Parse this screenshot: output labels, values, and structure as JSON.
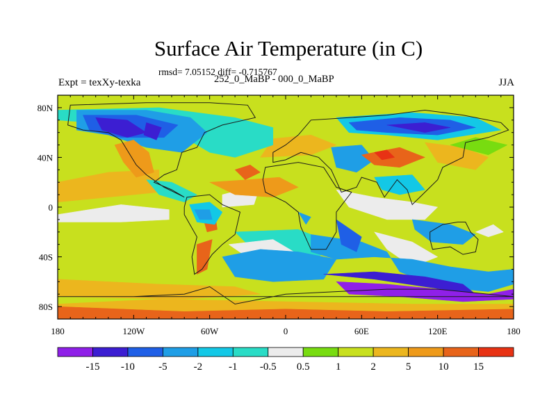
{
  "title": "Surface Air Temperature (in C)",
  "stats_text": "rmsd= 7.05152 diff= -0.715767",
  "left_subtitle": "Expt = texXy-texka",
  "center_subtitle": "252_0_MaBP - 000_0_MaBP",
  "right_subtitle": "JJA",
  "map": {
    "projection": "cylindrical-equidistant",
    "lon_range": [
      -180,
      180
    ],
    "lat_range": [
      -90,
      90
    ],
    "lon_ticks": [
      {
        "value": -180,
        "label": "180"
      },
      {
        "value": -120,
        "label": "120W"
      },
      {
        "value": -60,
        "label": "60W"
      },
      {
        "value": 0,
        "label": "0"
      },
      {
        "value": 60,
        "label": "60E"
      },
      {
        "value": 120,
        "label": "120E"
      },
      {
        "value": 180,
        "label": "180"
      }
    ],
    "lat_ticks": [
      {
        "value": 80,
        "label": "80N"
      },
      {
        "value": 40,
        "label": "40N"
      },
      {
        "value": 0,
        "label": "0"
      },
      {
        "value": -40,
        "label": "40S"
      },
      {
        "value": -80,
        "label": "80S"
      }
    ]
  },
  "colorbar": {
    "boundary_labels": [
      "-15",
      "-10",
      "-5",
      "-2",
      "-1",
      "-0.5",
      "0.5",
      "1",
      "2",
      "5",
      "10",
      "15"
    ],
    "colors": [
      "#8f20e8",
      "#3c1ed2",
      "#1f5fe6",
      "#1f9ee6",
      "#13c8e6",
      "#29dcc6",
      "#ececec",
      "#78dc10",
      "#c8e01e",
      "#ecb61e",
      "#ee9a1a",
      "#e8641a",
      "#e83214"
    ]
  },
  "field_regions": [
    {
      "level": 8,
      "points": [
        [
          -180,
          90
        ],
        [
          180,
          90
        ],
        [
          180,
          -90
        ],
        [
          -180,
          -90
        ]
      ]
    },
    {
      "level": 9,
      "points": [
        [
          -180,
          20
        ],
        [
          -140,
          28
        ],
        [
          -100,
          30
        ],
        [
          -100,
          12
        ],
        [
          -140,
          8
        ],
        [
          -180,
          4
        ]
      ]
    },
    {
      "level": 9,
      "points": [
        [
          -20,
          40
        ],
        [
          20,
          42
        ],
        [
          40,
          50
        ],
        [
          20,
          58
        ],
        [
          -10,
          55
        ]
      ]
    },
    {
      "level": 9,
      "points": [
        [
          -180,
          -58
        ],
        [
          -100,
          -62
        ],
        [
          -40,
          -64
        ],
        [
          -20,
          -70
        ],
        [
          -80,
          -74
        ],
        [
          -180,
          -72
        ]
      ]
    },
    {
      "level": 6,
      "points": [
        [
          -180,
          -6
        ],
        [
          -130,
          2
        ],
        [
          -92,
          -2
        ],
        [
          -92,
          -10
        ],
        [
          -130,
          -12
        ],
        [
          -180,
          -12
        ]
      ]
    },
    {
      "level": 6,
      "points": [
        [
          70,
          -20
        ],
        [
          100,
          -28
        ],
        [
          120,
          -40
        ],
        [
          100,
          -48
        ],
        [
          80,
          -34
        ]
      ]
    },
    {
      "level": 6,
      "points": [
        [
          -50,
          10
        ],
        [
          -20,
          18
        ],
        [
          -25,
          2
        ],
        [
          -50,
          0
        ]
      ]
    },
    {
      "level": 5,
      "points": [
        [
          -40,
          -20
        ],
        [
          10,
          -18
        ],
        [
          40,
          -30
        ],
        [
          20,
          -44
        ],
        [
          -20,
          -40
        ]
      ]
    },
    {
      "level": 6,
      "points": [
        [
          -45,
          -30
        ],
        [
          -10,
          -26
        ],
        [
          10,
          -38
        ],
        [
          -25,
          -44
        ]
      ]
    },
    {
      "level": 5,
      "points": [
        [
          -180,
          70
        ],
        [
          -100,
          64
        ],
        [
          -80,
          56
        ],
        [
          -60,
          44
        ],
        [
          -40,
          40
        ],
        [
          -10,
          50
        ],
        [
          -10,
          64
        ],
        [
          -40,
          72
        ],
        [
          -100,
          80
        ],
        [
          -180,
          78
        ]
      ]
    },
    {
      "level": 3,
      "points": [
        [
          -165,
          78
        ],
        [
          -110,
          78
        ],
        [
          -75,
          72
        ],
        [
          -62,
          60
        ],
        [
          -82,
          44
        ],
        [
          -110,
          48
        ],
        [
          -140,
          58
        ],
        [
          -165,
          62
        ]
      ]
    },
    {
      "level": 2,
      "points": [
        [
          -160,
          74
        ],
        [
          -118,
          74
        ],
        [
          -85,
          66
        ],
        [
          -96,
          56
        ],
        [
          -130,
          56
        ],
        [
          -155,
          62
        ]
      ]
    },
    {
      "level": 1,
      "points": [
        [
          -150,
          72
        ],
        [
          -125,
          70
        ],
        [
          -110,
          60
        ],
        [
          -125,
          56
        ],
        [
          -145,
          62
        ]
      ]
    },
    {
      "level": 1,
      "points": [
        [
          -110,
          68
        ],
        [
          -98,
          64
        ],
        [
          -102,
          54
        ],
        [
          -112,
          58
        ]
      ]
    },
    {
      "level": 5,
      "points": [
        [
          -110,
          22
        ],
        [
          -90,
          20
        ],
        [
          -70,
          10
        ],
        [
          -80,
          4
        ],
        [
          -100,
          10
        ]
      ]
    },
    {
      "level": 10,
      "points": [
        [
          -135,
          50
        ],
        [
          -120,
          54
        ],
        [
          -108,
          44
        ],
        [
          -104,
          28
        ],
        [
          -118,
          24
        ],
        [
          -128,
          36
        ]
      ]
    },
    {
      "level": 10,
      "points": [
        [
          -60,
          20
        ],
        [
          -30,
          22
        ],
        [
          -5,
          24
        ],
        [
          10,
          16
        ],
        [
          -10,
          8
        ],
        [
          -40,
          10
        ]
      ]
    },
    {
      "level": 11,
      "points": [
        [
          -40,
          30
        ],
        [
          -28,
          34
        ],
        [
          -20,
          28
        ],
        [
          -32,
          22
        ]
      ]
    },
    {
      "level": 11,
      "points": [
        [
          -66,
          -6
        ],
        [
          -56,
          -4
        ],
        [
          -54,
          -18
        ],
        [
          -62,
          -20
        ]
      ]
    },
    {
      "level": 4,
      "points": [
        [
          -76,
          2
        ],
        [
          -60,
          4
        ],
        [
          -50,
          -4
        ],
        [
          -56,
          -14
        ],
        [
          -70,
          -12
        ]
      ]
    },
    {
      "level": 3,
      "points": [
        [
          -72,
          -2
        ],
        [
          -60,
          -2
        ],
        [
          -58,
          -10
        ],
        [
          -68,
          -10
        ]
      ]
    },
    {
      "level": 3,
      "points": [
        [
          -50,
          -40
        ],
        [
          -20,
          -34
        ],
        [
          10,
          -36
        ],
        [
          40,
          -42
        ],
        [
          30,
          -58
        ],
        [
          -10,
          -60
        ],
        [
          -40,
          -56
        ]
      ]
    },
    {
      "level": 11,
      "points": [
        [
          -70,
          -30
        ],
        [
          -58,
          -26
        ],
        [
          -62,
          -50
        ],
        [
          -70,
          -54
        ]
      ]
    },
    {
      "level": 3,
      "points": [
        [
          20,
          -22
        ],
        [
          60,
          -28
        ],
        [
          80,
          -36
        ],
        [
          90,
          -52
        ],
        [
          120,
          -64
        ],
        [
          160,
          -68
        ],
        [
          180,
          -62
        ],
        [
          180,
          -50
        ],
        [
          160,
          -52
        ],
        [
          130,
          -48
        ],
        [
          100,
          -42
        ],
        [
          70,
          -40
        ],
        [
          40,
          -42
        ],
        [
          20,
          -36
        ]
      ]
    },
    {
      "level": 1,
      "points": [
        [
          30,
          -54
        ],
        [
          70,
          -58
        ],
        [
          110,
          -64
        ],
        [
          150,
          -70
        ],
        [
          140,
          -62
        ],
        [
          110,
          -56
        ],
        [
          70,
          -52
        ]
      ]
    },
    {
      "level": 0,
      "points": [
        [
          40,
          -60
        ],
        [
          80,
          -62
        ],
        [
          120,
          -66
        ],
        [
          160,
          -70
        ],
        [
          180,
          -66
        ],
        [
          180,
          -74
        ],
        [
          140,
          -76
        ],
        [
          90,
          -72
        ],
        [
          50,
          -70
        ]
      ]
    },
    {
      "level": 9,
      "points": [
        [
          -100,
          -74
        ],
        [
          0,
          -76
        ],
        [
          100,
          -78
        ],
        [
          180,
          -78
        ],
        [
          180,
          -90
        ],
        [
          -180,
          -90
        ],
        [
          -180,
          -78
        ]
      ]
    },
    {
      "level": 11,
      "points": [
        [
          -180,
          -80
        ],
        [
          -80,
          -84
        ],
        [
          0,
          -82
        ],
        [
          80,
          -84
        ],
        [
          180,
          -82
        ],
        [
          180,
          -90
        ],
        [
          -180,
          -90
        ]
      ]
    },
    {
      "level": 3,
      "points": [
        [
          10,
          -4
        ],
        [
          20,
          -8
        ],
        [
          16,
          -14
        ]
      ]
    },
    {
      "level": 2,
      "points": [
        [
          40,
          -10
        ],
        [
          60,
          -24
        ],
        [
          56,
          -36
        ],
        [
          44,
          -30
        ]
      ]
    },
    {
      "level": 6,
      "points": [
        [
          40,
          14
        ],
        [
          70,
          8
        ],
        [
          100,
          4
        ],
        [
          120,
          0
        ],
        [
          110,
          -10
        ],
        [
          80,
          -10
        ],
        [
          50,
          0
        ]
      ]
    },
    {
      "level": 4,
      "points": [
        [
          70,
          24
        ],
        [
          100,
          26
        ],
        [
          110,
          14
        ],
        [
          90,
          10
        ],
        [
          76,
          14
        ]
      ]
    },
    {
      "level": 3,
      "points": [
        [
          36,
          48
        ],
        [
          60,
          50
        ],
        [
          70,
          38
        ],
        [
          56,
          28
        ],
        [
          40,
          32
        ]
      ]
    },
    {
      "level": 11,
      "points": [
        [
          60,
          42
        ],
        [
          90,
          48
        ],
        [
          110,
          40
        ],
        [
          90,
          32
        ],
        [
          70,
          34
        ]
      ]
    },
    {
      "level": 12,
      "points": [
        [
          70,
          44
        ],
        [
          80,
          46
        ],
        [
          86,
          40
        ],
        [
          76,
          38
        ]
      ]
    },
    {
      "level": 4,
      "points": [
        [
          40,
          72
        ],
        [
          100,
          76
        ],
        [
          150,
          72
        ],
        [
          170,
          62
        ],
        [
          120,
          54
        ],
        [
          80,
          58
        ],
        [
          50,
          60
        ]
      ]
    },
    {
      "level": 2,
      "points": [
        [
          50,
          68
        ],
        [
          90,
          72
        ],
        [
          130,
          70
        ],
        [
          150,
          64
        ],
        [
          120,
          58
        ],
        [
          80,
          60
        ],
        [
          56,
          62
        ]
      ]
    },
    {
      "level": 1,
      "points": [
        [
          80,
          66
        ],
        [
          110,
          68
        ],
        [
          130,
          64
        ],
        [
          110,
          60
        ]
      ]
    },
    {
      "level": 9,
      "points": [
        [
          110,
          52
        ],
        [
          140,
          48
        ],
        [
          160,
          40
        ],
        [
          150,
          30
        ],
        [
          120,
          36
        ]
      ]
    },
    {
      "level": 3,
      "points": [
        [
          100,
          -10
        ],
        [
          130,
          -14
        ],
        [
          150,
          -22
        ],
        [
          140,
          -30
        ],
        [
          115,
          -28
        ],
        [
          102,
          -18
        ]
      ]
    },
    {
      "level": 6,
      "points": [
        [
          150,
          -20
        ],
        [
          160,
          -24
        ],
        [
          172,
          -20
        ],
        [
          164,
          -14
        ]
      ]
    },
    {
      "level": 7,
      "points": [
        [
          130,
          50
        ],
        [
          150,
          56
        ],
        [
          175,
          50
        ],
        [
          160,
          42
        ]
      ]
    }
  ],
  "continent_outlines": [
    [
      [
        -170,
        82
      ],
      [
        -110,
        84
      ],
      [
        -60,
        84
      ],
      [
        -30,
        82
      ],
      [
        -24,
        72
      ],
      [
        -50,
        66
      ],
      [
        -64,
        60
      ],
      [
        -70,
        48
      ],
      [
        -82,
        44
      ],
      [
        -86,
        30
      ],
      [
        -96,
        26
      ],
      [
        -104,
        20
      ],
      [
        -90,
        14
      ],
      [
        -80,
        8
      ],
      [
        -96,
        16
      ],
      [
        -110,
        26
      ],
      [
        -118,
        34
      ],
      [
        -124,
        44
      ],
      [
        -130,
        54
      ],
      [
        -140,
        60
      ],
      [
        -160,
        62
      ],
      [
        -172,
        66
      ]
    ],
    [
      [
        -78,
        8
      ],
      [
        -60,
        10
      ],
      [
        -50,
        2
      ],
      [
        -36,
        -4
      ],
      [
        -40,
        -22
      ],
      [
        -50,
        -30
      ],
      [
        -58,
        -38
      ],
      [
        -66,
        -50
      ],
      [
        -72,
        -54
      ],
      [
        -74,
        -40
      ],
      [
        -70,
        -24
      ],
      [
        -80,
        -6
      ],
      [
        -80,
        0
      ]
    ],
    [
      [
        -16,
        32
      ],
      [
        10,
        36
      ],
      [
        30,
        32
      ],
      [
        40,
        16
      ],
      [
        52,
        12
      ],
      [
        40,
        -4
      ],
      [
        40,
        -20
      ],
      [
        32,
        -34
      ],
      [
        20,
        -34
      ],
      [
        12,
        -16
      ],
      [
        10,
        -4
      ],
      [
        0,
        4
      ],
      [
        -16,
        12
      ],
      [
        -18,
        22
      ]
    ],
    [
      [
        -10,
        36
      ],
      [
        -10,
        44
      ],
      [
        0,
        50
      ],
      [
        10,
        58
      ],
      [
        20,
        70
      ],
      [
        50,
        72
      ],
      [
        80,
        74
      ],
      [
        110,
        78
      ],
      [
        140,
        74
      ],
      [
        170,
        68
      ],
      [
        176,
        62
      ],
      [
        160,
        56
      ],
      [
        142,
        52
      ],
      [
        140,
        40
      ],
      [
        124,
        32
      ],
      [
        120,
        22
      ],
      [
        108,
        10
      ],
      [
        100,
        2
      ],
      [
        96,
        14
      ],
      [
        88,
        22
      ],
      [
        78,
        8
      ],
      [
        72,
        20
      ],
      [
        60,
        24
      ],
      [
        56,
        16
      ],
      [
        44,
        12
      ],
      [
        36,
        30
      ],
      [
        26,
        40
      ],
      [
        12,
        44
      ],
      [
        0,
        38
      ]
    ],
    [
      [
        114,
        -20
      ],
      [
        124,
        -14
      ],
      [
        136,
        -12
      ],
      [
        142,
        -12
      ],
      [
        146,
        -20
      ],
      [
        152,
        -26
      ],
      [
        150,
        -36
      ],
      [
        140,
        -38
      ],
      [
        130,
        -32
      ],
      [
        116,
        -34
      ],
      [
        114,
        -26
      ]
    ],
    [
      [
        -180,
        -72
      ],
      [
        -120,
        -72
      ],
      [
        -80,
        -70
      ],
      [
        -60,
        -64
      ],
      [
        -40,
        -78
      ],
      [
        0,
        -70
      ],
      [
        40,
        -68
      ],
      [
        80,
        -66
      ],
      [
        120,
        -66
      ],
      [
        160,
        -70
      ],
      [
        180,
        -72
      ]
    ]
  ]
}
